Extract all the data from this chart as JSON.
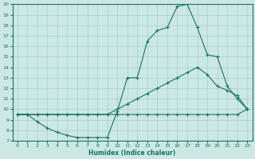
{
  "xlabel": "Humidex (Indice chaleur)",
  "xlim": [
    -0.5,
    23.5
  ],
  "ylim": [
    7,
    20
  ],
  "xticks": [
    0,
    1,
    2,
    3,
    4,
    5,
    6,
    7,
    8,
    9,
    10,
    11,
    12,
    13,
    14,
    15,
    16,
    17,
    18,
    19,
    20,
    21,
    22,
    23
  ],
  "yticks": [
    7,
    8,
    9,
    10,
    11,
    12,
    13,
    14,
    15,
    16,
    17,
    18,
    19,
    20
  ],
  "bg_color": "#cce8e4",
  "grid_color": "#a8cccc",
  "line_color": "#1a7068",
  "line1_x": [
    0,
    1,
    2,
    3,
    4,
    5,
    6,
    7,
    8,
    9,
    10,
    11,
    12,
    13,
    14,
    15,
    16,
    17,
    18,
    19,
    20,
    21,
    22,
    23
  ],
  "line1_y": [
    9.5,
    9.5,
    8.8,
    8.2,
    7.8,
    7.5,
    7.3,
    7.3,
    7.3,
    7.3,
    9.8,
    13.0,
    13.0,
    16.5,
    17.5,
    17.8,
    19.8,
    20.0,
    17.8,
    15.2,
    15.0,
    12.2,
    11.0,
    10.0
  ],
  "line2_x": [
    0,
    1,
    2,
    3,
    4,
    5,
    6,
    7,
    8,
    9,
    10,
    11,
    12,
    13,
    14,
    15,
    16,
    17,
    18,
    19,
    20,
    21,
    22,
    23
  ],
  "line2_y": [
    9.5,
    9.5,
    9.5,
    9.5,
    9.5,
    9.5,
    9.5,
    9.5,
    9.5,
    9.5,
    10.0,
    10.5,
    11.0,
    11.5,
    12.0,
    12.5,
    13.0,
    13.5,
    14.0,
    13.3,
    12.2,
    11.8,
    11.3,
    10.0
  ],
  "line3_x": [
    0,
    1,
    2,
    3,
    4,
    5,
    6,
    7,
    8,
    9,
    10,
    11,
    12,
    13,
    14,
    15,
    16,
    17,
    18,
    19,
    20,
    21,
    22,
    23
  ],
  "line3_y": [
    9.5,
    9.5,
    9.5,
    9.5,
    9.5,
    9.5,
    9.5,
    9.5,
    9.5,
    9.5,
    9.5,
    9.5,
    9.5,
    9.5,
    9.5,
    9.5,
    9.5,
    9.5,
    9.5,
    9.5,
    9.5,
    9.5,
    9.5,
    10.0
  ]
}
